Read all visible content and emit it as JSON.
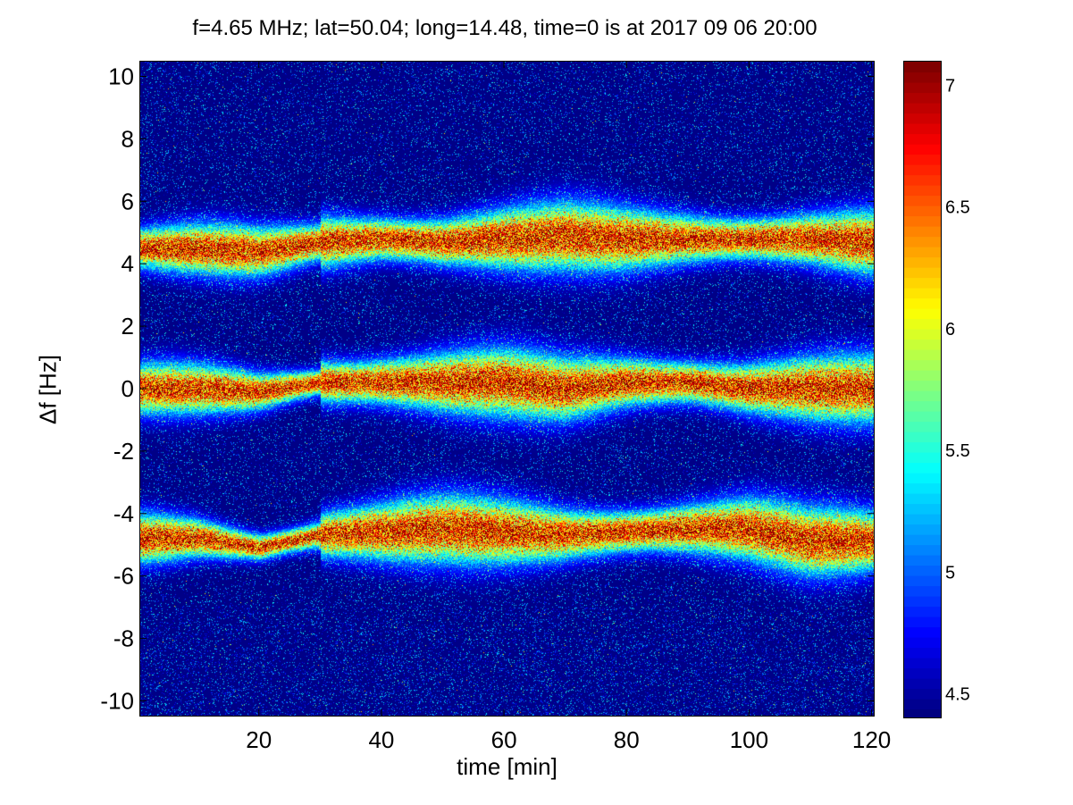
{
  "chart_data": {
    "type": "heatmap",
    "title": "f=4.65 MHz;  lat=50.04; long=14.48, time=0 is at 2017 09 06 20:00",
    "xlabel": "time [min]",
    "ylabel": "Δf [Hz]",
    "xlim": [
      0.5,
      120.5
    ],
    "ylim": [
      -10.5,
      10.5
    ],
    "xticks": [
      20,
      40,
      60,
      80,
      100,
      120
    ],
    "yticks": [
      -10,
      -8,
      -6,
      -4,
      -2,
      0,
      2,
      4,
      6,
      8,
      10
    ],
    "xtick_labels": [
      "20",
      "40",
      "60",
      "80",
      "100",
      "120"
    ],
    "ytick_labels": [
      "-10",
      "-8",
      "-6",
      "-4",
      "-2",
      "0",
      "2",
      "4",
      "6",
      "8",
      "10"
    ],
    "colormap": "jet",
    "colorbar": {
      "range": [
        4.4,
        7.1
      ],
      "ticks": [
        4.5,
        5,
        5.5,
        6,
        6.5,
        7
      ],
      "tick_labels": [
        "4.5",
        "5",
        "5.5",
        "6",
        "6.5",
        "7"
      ]
    },
    "bands": [
      {
        "name_hint": "upper",
        "time": [
          0,
          10,
          20,
          30,
          40,
          50,
          60,
          70,
          80,
          90,
          100,
          110,
          120
        ],
        "center_hz": [
          4.5,
          4.5,
          4.4,
          4.7,
          4.8,
          4.7,
          4.8,
          4.9,
          4.8,
          4.8,
          4.8,
          4.8,
          4.7
        ]
      },
      {
        "name_hint": "middle",
        "time": [
          0,
          10,
          20,
          30,
          40,
          50,
          60,
          70,
          80,
          90,
          100,
          110,
          120
        ],
        "center_hz": [
          0.0,
          0.0,
          -0.1,
          0.2,
          0.2,
          0.2,
          0.2,
          0.0,
          0.2,
          0.2,
          0.0,
          0.0,
          0.0
        ]
      },
      {
        "name_hint": "lower",
        "time": [
          0,
          10,
          20,
          30,
          40,
          50,
          60,
          70,
          80,
          90,
          100,
          110,
          120
        ],
        "center_hz": [
          -4.8,
          -4.8,
          -5.1,
          -4.7,
          -4.6,
          -4.5,
          -4.6,
          -4.7,
          -4.6,
          -4.5,
          -4.5,
          -4.9,
          -4.9
        ]
      }
    ],
    "hidden_marker_for_band_is_rendered": true
  },
  "colors": {
    "background_low": "#00008f",
    "peak": "#800000"
  }
}
